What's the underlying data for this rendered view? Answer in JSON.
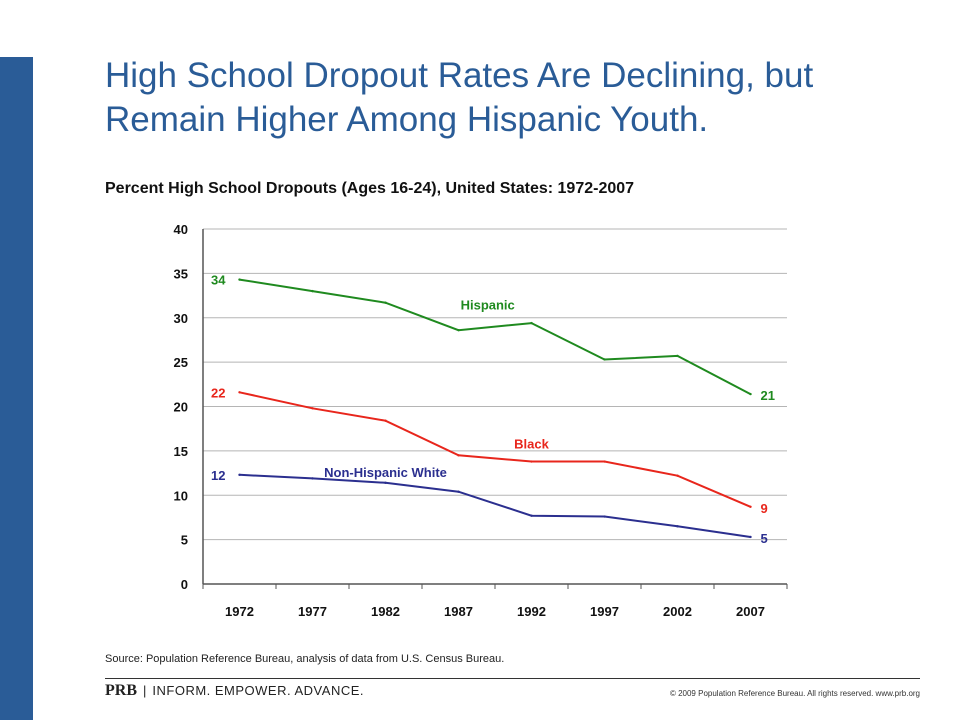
{
  "page": {
    "title": "High School Dropout Rates Are Declining, but Remain Higher Among Hispanic Youth.",
    "subtitle": "Percent High School Dropouts (Ages 16-24), United States: 1972-2007",
    "source": "Source: Population Reference Bureau, analysis of data from U.S. Census Bureau.",
    "footer": {
      "logo_text": "PRB",
      "separator": "|",
      "tagline": "INFORM. EMPOWER. ADVANCE.",
      "copyright": "© 2009 Population Reference Bureau. All rights reserved. www.prb.org"
    }
  },
  "colors": {
    "brand": "#2a5c97",
    "hispanic": "#1f8a1f",
    "black": "#e8261c",
    "white": "#2b2f8f"
  },
  "chart_data": {
    "type": "line",
    "categories": [
      "1972",
      "1977",
      "1982",
      "1987",
      "1992",
      "1997",
      "2002",
      "2007"
    ],
    "ylim": [
      0,
      40
    ],
    "yticks": [
      "0",
      "5",
      "10",
      "15",
      "20",
      "25",
      "30",
      "35",
      "40"
    ],
    "grid": true,
    "series": [
      {
        "name": "Hispanic",
        "color": "#1f8a1f",
        "values": [
          34.3,
          33.0,
          31.7,
          28.6,
          29.4,
          25.3,
          25.7,
          21.4
        ],
        "start_label": "34",
        "end_label": "21"
      },
      {
        "name": "Black",
        "color": "#e8261c",
        "values": [
          21.6,
          19.8,
          18.4,
          14.5,
          13.8,
          13.8,
          12.2,
          8.7
        ],
        "start_label": "22",
        "end_label": "9"
      },
      {
        "name": "Non-Hispanic White",
        "color": "#2b2f8f",
        "values": [
          12.3,
          11.9,
          11.4,
          10.4,
          7.7,
          7.6,
          6.5,
          5.3
        ],
        "start_label": "12",
        "end_label": "5"
      }
    ]
  }
}
